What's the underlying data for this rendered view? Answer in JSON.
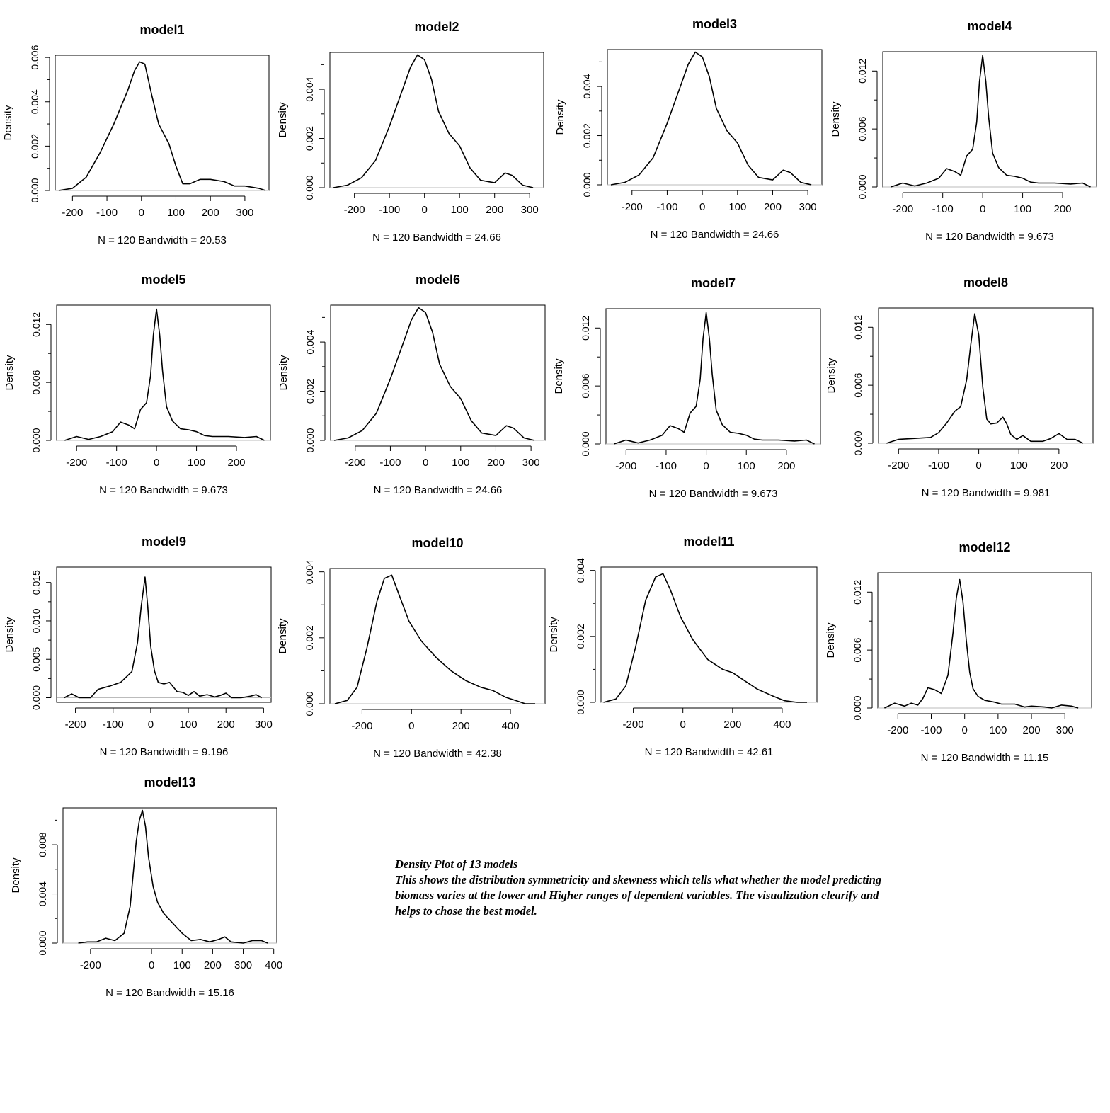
{
  "figure_note": {
    "heading": "Density Plot of 13 models",
    "body_lines": [
      "This shows the distribution symmetricity and skewness which tells what whether the model predicting",
      "biomass varies at the lower and Higher ranges of dependent variables. The visualization clearify and",
      "helps to chose the best model."
    ]
  },
  "chart_data": [
    {
      "type": "line",
      "title": "model1",
      "ylabel": "Density",
      "xlabel": "N = 120   Bandwidth = 20.53",
      "xlim": [
        -250,
        370
      ],
      "ylim": [
        0,
        0.0061
      ],
      "xticks": [
        -200,
        -100,
        0,
        100,
        200,
        300
      ],
      "yticks": [
        0,
        0.002,
        0.004,
        0.006
      ],
      "ytick_labels": [
        "0.000",
        "0.002",
        "0.004",
        "0.006"
      ],
      "x": [
        -240,
        -200,
        -160,
        -120,
        -80,
        -40,
        -20,
        -5,
        10,
        30,
        50,
        80,
        100,
        120,
        140,
        170,
        200,
        240,
        270,
        300,
        340,
        360
      ],
      "y": [
        0,
        0.0001,
        0.0006,
        0.0017,
        0.003,
        0.0045,
        0.0054,
        0.0058,
        0.0057,
        0.0043,
        0.003,
        0.0021,
        0.0011,
        0.0003,
        0.0003,
        0.0005,
        0.0005,
        0.0004,
        0.0002,
        0.0002,
        0.0001,
        0
      ]
    },
    {
      "type": "line",
      "title": "model2",
      "ylabel": "Density",
      "xlabel": "N = 120   Bandwidth = 24.66",
      "xlim": [
        -270,
        340
      ],
      "ylim": [
        0,
        0.0055
      ],
      "xticks": [
        -200,
        -100,
        0,
        100,
        200,
        300
      ],
      "yticks": [
        0,
        0.002,
        0.004
      ],
      "ytick_labels": [
        "0.000",
        "0.002",
        "0.004"
      ],
      "x": [
        -260,
        -220,
        -180,
        -140,
        -100,
        -60,
        -40,
        -20,
        0,
        20,
        40,
        70,
        100,
        130,
        160,
        200,
        230,
        250,
        280,
        310
      ],
      "y": [
        0,
        0.0001,
        0.0004,
        0.0011,
        0.0025,
        0.0041,
        0.0049,
        0.0054,
        0.0052,
        0.0044,
        0.0031,
        0.0022,
        0.0017,
        0.0008,
        0.0003,
        0.0002,
        0.0006,
        0.0005,
        0.0001,
        0
      ]
    },
    {
      "type": "line",
      "title": "model3",
      "ylabel": "Density",
      "xlabel": "N = 120   Bandwidth = 24.66",
      "xlim": [
        -270,
        340
      ],
      "ylim": [
        0,
        0.0055
      ],
      "xticks": [
        -200,
        -100,
        0,
        100,
        200,
        300
      ],
      "yticks": [
        0,
        0.002,
        0.004
      ],
      "ytick_labels": [
        "0.000",
        "0.002",
        "0.004"
      ],
      "x": [
        -260,
        -220,
        -180,
        -140,
        -100,
        -60,
        -40,
        -20,
        0,
        20,
        40,
        70,
        100,
        130,
        160,
        200,
        230,
        250,
        280,
        310
      ],
      "y": [
        0,
        0.0001,
        0.0004,
        0.0011,
        0.0025,
        0.0041,
        0.0049,
        0.0054,
        0.0052,
        0.0044,
        0.0031,
        0.0022,
        0.0017,
        0.0008,
        0.0003,
        0.0002,
        0.0006,
        0.0005,
        0.0001,
        0
      ]
    },
    {
      "type": "line",
      "title": "model4",
      "ylabel": "Density",
      "xlabel": "N = 120   Bandwidth = 9.673",
      "xlim": [
        -250,
        285
      ],
      "ylim": [
        0,
        0.014
      ],
      "xticks": [
        -200,
        -100,
        0,
        100,
        200
      ],
      "yticks": [
        0,
        0.006,
        0.012
      ],
      "ytick_labels": [
        "0.000",
        "0.006",
        "0.012"
      ],
      "x": [
        -230,
        -200,
        -170,
        -140,
        -110,
        -90,
        -70,
        -55,
        -40,
        -25,
        -15,
        -8,
        0,
        8,
        15,
        25,
        40,
        60,
        80,
        100,
        120,
        140,
        180,
        220,
        250,
        270
      ],
      "y": [
        0,
        0.0004,
        0.0001,
        0.0004,
        0.0009,
        0.0019,
        0.0016,
        0.0012,
        0.0032,
        0.0039,
        0.0067,
        0.0109,
        0.0136,
        0.0109,
        0.0072,
        0.0035,
        0.002,
        0.0012,
        0.0011,
        0.0009,
        0.0005,
        0.0004,
        0.0004,
        0.0003,
        0.0004,
        0
      ]
    },
    {
      "type": "line",
      "title": "model5",
      "ylabel": "Density",
      "xlabel": "N = 120   Bandwidth = 9.673",
      "xlim": [
        -250,
        285
      ],
      "ylim": [
        0,
        0.014
      ],
      "xticks": [
        -200,
        -100,
        0,
        100,
        200
      ],
      "yticks": [
        0,
        0.006,
        0.012
      ],
      "ytick_labels": [
        "0.000",
        "0.006",
        "0.012"
      ],
      "x": [
        -230,
        -200,
        -170,
        -140,
        -110,
        -90,
        -70,
        -55,
        -40,
        -25,
        -15,
        -8,
        0,
        8,
        15,
        25,
        40,
        60,
        80,
        100,
        120,
        140,
        180,
        220,
        250,
        270
      ],
      "y": [
        0,
        0.0004,
        0.0001,
        0.0004,
        0.0009,
        0.0019,
        0.0016,
        0.0012,
        0.0032,
        0.0039,
        0.0067,
        0.0109,
        0.0136,
        0.0109,
        0.0072,
        0.0035,
        0.002,
        0.0012,
        0.0011,
        0.0009,
        0.0005,
        0.0004,
        0.0004,
        0.0003,
        0.0004,
        0
      ]
    },
    {
      "type": "line",
      "title": "model6",
      "ylabel": "Density",
      "xlabel": "N = 120   Bandwidth = 24.66",
      "xlim": [
        -270,
        340
      ],
      "ylim": [
        0,
        0.0055
      ],
      "xticks": [
        -200,
        -100,
        0,
        100,
        200,
        300
      ],
      "yticks": [
        0,
        0.002,
        0.004
      ],
      "ytick_labels": [
        "0.000",
        "0.002",
        "0.004"
      ],
      "x": [
        -260,
        -220,
        -180,
        -140,
        -100,
        -60,
        -40,
        -20,
        0,
        20,
        40,
        70,
        100,
        130,
        160,
        200,
        230,
        250,
        280,
        310
      ],
      "y": [
        0,
        0.0001,
        0.0004,
        0.0011,
        0.0025,
        0.0041,
        0.0049,
        0.0054,
        0.0052,
        0.0044,
        0.0031,
        0.0022,
        0.0017,
        0.0008,
        0.0003,
        0.0002,
        0.0006,
        0.0005,
        0.0001,
        0
      ]
    },
    {
      "type": "line",
      "title": "model7",
      "ylabel": "Density",
      "xlabel": "N = 120   Bandwidth = 9.673",
      "xlim": [
        -250,
        285
      ],
      "ylim": [
        0,
        0.014
      ],
      "xticks": [
        -200,
        -100,
        0,
        100,
        200
      ],
      "yticks": [
        0,
        0.006,
        0.012
      ],
      "ytick_labels": [
        "0.000",
        "0.006",
        "0.012"
      ],
      "x": [
        -230,
        -200,
        -170,
        -140,
        -110,
        -90,
        -70,
        -55,
        -40,
        -25,
        -15,
        -8,
        0,
        8,
        15,
        25,
        40,
        60,
        80,
        100,
        120,
        140,
        180,
        220,
        250,
        270
      ],
      "y": [
        0,
        0.0004,
        0.0001,
        0.0004,
        0.0009,
        0.0019,
        0.0016,
        0.0012,
        0.0032,
        0.0039,
        0.0067,
        0.0109,
        0.0136,
        0.0109,
        0.0072,
        0.0035,
        0.002,
        0.0012,
        0.0011,
        0.0009,
        0.0005,
        0.0004,
        0.0004,
        0.0003,
        0.0004,
        0
      ]
    },
    {
      "type": "line",
      "title": "model8",
      "ylabel": "Density",
      "xlabel": "N = 120   Bandwidth = 9.981",
      "xlim": [
        -250,
        285
      ],
      "ylim": [
        0,
        0.014
      ],
      "xticks": [
        -200,
        -100,
        0,
        100,
        200
      ],
      "yticks": [
        0,
        0.006,
        0.012
      ],
      "ytick_labels": [
        "0.000",
        "0.006",
        "0.012"
      ],
      "x": [
        -230,
        -200,
        -160,
        -120,
        -100,
        -80,
        -60,
        -45,
        -30,
        -20,
        -10,
        0,
        10,
        20,
        30,
        45,
        60,
        70,
        80,
        95,
        110,
        130,
        160,
        180,
        200,
        220,
        240,
        260
      ],
      "y": [
        0,
        0.0004,
        0.0005,
        0.0006,
        0.0011,
        0.0021,
        0.0033,
        0.0038,
        0.0066,
        0.0102,
        0.0134,
        0.0112,
        0.0058,
        0.0025,
        0.002,
        0.0021,
        0.0027,
        0.002,
        0.0009,
        0.0004,
        0.0008,
        0.0002,
        0.0002,
        0.0005,
        0.001,
        0.0004,
        0.0004,
        0
      ]
    },
    {
      "type": "line",
      "title": "model9",
      "ylabel": "Density",
      "xlabel": "N = 120   Bandwidth = 9.196",
      "xlim": [
        -250,
        320
      ],
      "ylim": [
        -0.0006,
        0.017
      ],
      "xticks": [
        -200,
        -100,
        0,
        100,
        200,
        300
      ],
      "yticks": [
        0,
        0.005,
        0.01,
        0.015
      ],
      "ytick_labels": [
        "0.000",
        "0.005",
        "0.010",
        "0.015"
      ],
      "x": [
        -230,
        -210,
        -190,
        -160,
        -140,
        -110,
        -80,
        -50,
        -35,
        -25,
        -15,
        -8,
        0,
        10,
        20,
        35,
        50,
        70,
        85,
        100,
        115,
        130,
        150,
        170,
        185,
        200,
        215,
        240,
        265,
        280,
        295
      ],
      "y": [
        0,
        0.0005,
        0,
        0,
        0.0011,
        0.0015,
        0.002,
        0.0034,
        0.0072,
        0.012,
        0.0157,
        0.012,
        0.0067,
        0.0035,
        0.002,
        0.0018,
        0.002,
        0.0008,
        0.0007,
        0.0003,
        0.0008,
        0.0002,
        0.0004,
        0.0001,
        0.0003,
        0.0006,
        0,
        0,
        0.0002,
        0.0004,
        0
      ]
    },
    {
      "type": "line",
      "title": "model10",
      "ylabel": "Density",
      "xlabel": "N = 120   Bandwidth = 42.38",
      "xlim": [
        -330,
        540
      ],
      "ylim": [
        0,
        0.0041
      ],
      "xticks": [
        -200,
        0,
        200,
        400
      ],
      "yticks": [
        0,
        0.002,
        0.004
      ],
      "ytick_labels": [
        "0.000",
        "0.002",
        "0.004"
      ],
      "x": [
        -310,
        -260,
        -220,
        -180,
        -140,
        -110,
        -80,
        -50,
        -10,
        40,
        100,
        160,
        220,
        280,
        330,
        380,
        420,
        460,
        500
      ],
      "y": [
        0,
        0.0001,
        0.0005,
        0.0017,
        0.0031,
        0.0038,
        0.0039,
        0.0033,
        0.0025,
        0.0019,
        0.0014,
        0.001,
        0.0007,
        0.0005,
        0.0004,
        0.0002,
        0.0001,
        0,
        0
      ]
    },
    {
      "type": "line",
      "title": "model11",
      "ylabel": "Density",
      "xlabel": "N = 120   Bandwidth = 42.61",
      "xlim": [
        -330,
        540
      ],
      "ylim": [
        0,
        0.0041
      ],
      "xticks": [
        -200,
        0,
        200,
        400
      ],
      "yticks": [
        0,
        0.002,
        0.004
      ],
      "ytick_labels": [
        "0.000",
        "0.002",
        "0.004"
      ],
      "x": [
        -320,
        -270,
        -230,
        -190,
        -150,
        -110,
        -80,
        -50,
        -10,
        40,
        100,
        160,
        200,
        240,
        300,
        360,
        410,
        460,
        500
      ],
      "y": [
        0,
        0.0001,
        0.0005,
        0.0017,
        0.0031,
        0.0038,
        0.0039,
        0.0034,
        0.0026,
        0.0019,
        0.0013,
        0.001,
        0.0009,
        0.0007,
        0.0004,
        0.0002,
        5e-05,
        0,
        0
      ]
    },
    {
      "type": "line",
      "title": "model12",
      "ylabel": "Density",
      "xlabel": "N = 120   Bandwidth = 11.15",
      "xlim": [
        -260,
        380
      ],
      "ylim": [
        0,
        0.014
      ],
      "xticks": [
        -200,
        -100,
        0,
        100,
        200,
        300
      ],
      "yticks": [
        0,
        0.006,
        0.012
      ],
      "ytick_labels": [
        "0.000",
        "0.006",
        "0.012"
      ],
      "x": [
        -240,
        -210,
        -180,
        -160,
        -140,
        -125,
        -110,
        -90,
        -70,
        -50,
        -35,
        -25,
        -15,
        -5,
        5,
        15,
        25,
        40,
        60,
        90,
        110,
        150,
        180,
        200,
        240,
        260,
        290,
        320,
        340
      ],
      "y": [
        0,
        0.0005,
        0.0002,
        0.0005,
        0.0003,
        0.001,
        0.0021,
        0.0019,
        0.0015,
        0.0034,
        0.0078,
        0.0114,
        0.0133,
        0.011,
        0.007,
        0.0037,
        0.002,
        0.0012,
        0.0008,
        0.0006,
        0.0004,
        0.0004,
        0.0001,
        0.0002,
        0.0001,
        0,
        0.0003,
        0.0002,
        0
      ]
    },
    {
      "type": "line",
      "title": "model13",
      "ylabel": "Density",
      "xlabel": "N = 120   Bandwidth = 15.16",
      "xlim": [
        -290,
        410
      ],
      "ylim": [
        0,
        0.011
      ],
      "xticks": [
        -200,
        0,
        100,
        200,
        300,
        400
      ],
      "yticks": [
        0,
        0.004,
        0.008
      ],
      "ytick_labels": [
        "0.000",
        "0.004",
        "0.008"
      ],
      "x": [
        -240,
        -210,
        -180,
        -150,
        -120,
        -90,
        -70,
        -50,
        -40,
        -30,
        -20,
        -10,
        5,
        20,
        40,
        70,
        100,
        130,
        160,
        190,
        220,
        240,
        260,
        300,
        330,
        360,
        380
      ],
      "y": [
        0,
        0.0001,
        0.0001,
        0.0004,
        0.0002,
        0.0008,
        0.003,
        0.0083,
        0.01,
        0.0108,
        0.0095,
        0.007,
        0.0046,
        0.0033,
        0.0024,
        0.0016,
        0.0008,
        0.0002,
        0.0003,
        0.0001,
        0.0003,
        0.0005,
        0.0001,
        0,
        0.0002,
        0.0002,
        0
      ]
    }
  ]
}
